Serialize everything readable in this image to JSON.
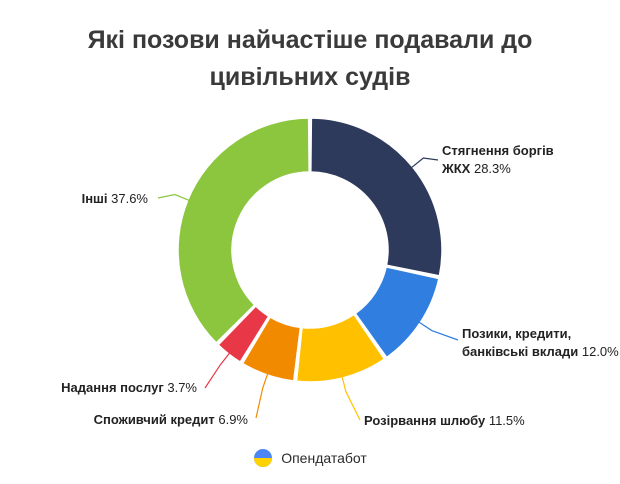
{
  "title_line1": "Які позови найчастіше подавали до",
  "title_line2": "цивільних судів",
  "chart_data": {
    "type": "pie",
    "donut": true,
    "series": [
      {
        "name": "Стягнення боргів ЖКХ",
        "value": 28.3,
        "label": "28.3%",
        "color": "#2e3a5c",
        "label_lines": [
          "Стягнення боргів",
          "ЖКХ"
        ]
      },
      {
        "name": "Позики, кредити, банківські вклади",
        "value": 12.0,
        "label": "12.0%",
        "color": "#2f7ee0",
        "label_lines": [
          "Позики, кредити,",
          "банківські вклади"
        ]
      },
      {
        "name": "Розірвання шлюбу",
        "value": 11.5,
        "label": "11.5%",
        "color": "#ffc000",
        "label_lines": [
          "Розірвання шлюбу"
        ]
      },
      {
        "name": "Споживчий кредит",
        "value": 6.9,
        "label": "6.9%",
        "color": "#f28a00",
        "label_lines": [
          "Споживчий кредит"
        ]
      },
      {
        "name": "Надання послуг",
        "value": 3.7,
        "label": "3.7%",
        "color": "#e83848",
        "label_lines": [
          "Надання послуг"
        ]
      },
      {
        "name": "Інші",
        "value": 37.6,
        "label": "37.6%",
        "color": "#8cc63f",
        "label_lines": [
          "Інші"
        ]
      }
    ]
  },
  "footer": {
    "brand": "Опендатабот",
    "logo_colors": [
      "#4f86f7",
      "#ffd200"
    ]
  }
}
